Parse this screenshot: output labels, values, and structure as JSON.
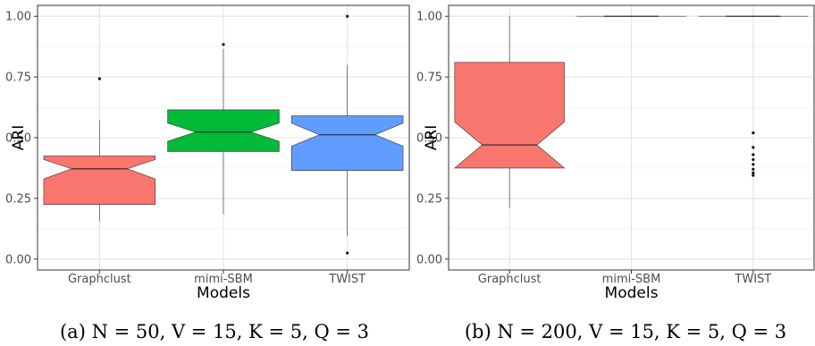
{
  "chart_data": [
    {
      "type": "box",
      "caption": "(a) N = 50, V = 15, K = 5, Q = 3",
      "xlabel": "Models",
      "ylabel": "ARI",
      "ylim": [
        -0.045,
        1.045
      ],
      "yticks": [
        "0.00",
        "0.25",
        "0.50",
        "0.75",
        "1.00"
      ],
      "categories": [
        "Graphclust",
        "mimi-SBM",
        "TWIST"
      ],
      "grid": true,
      "notched": true,
      "boxes": [
        {
          "category": "Graphclust",
          "color": "#F8766D",
          "lower_whisker": 0.155,
          "q1": 0.225,
          "median": 0.372,
          "q3": 0.425,
          "upper_whisker": 0.572,
          "notch_low": 0.33,
          "notch_high": 0.41,
          "outliers": [
            0.743
          ]
        },
        {
          "category": "mimi-SBM",
          "color": "#00BA38",
          "lower_whisker": 0.185,
          "q1": 0.443,
          "median": 0.523,
          "q3": 0.615,
          "upper_whisker": 0.865,
          "notch_low": 0.485,
          "notch_high": 0.56,
          "outliers": [
            0.884
          ]
        },
        {
          "category": "TWIST",
          "color": "#619CFF",
          "lower_whisker": 0.095,
          "q1": 0.365,
          "median": 0.512,
          "q3": 0.59,
          "upper_whisker": 0.8,
          "notch_low": 0.465,
          "notch_high": 0.56,
          "outliers": [
            1.0,
            0.025
          ]
        }
      ]
    },
    {
      "type": "box",
      "caption": "(b) N = 200, V = 15, K = 5, Q = 3",
      "xlabel": "Models",
      "ylabel": "ARI",
      "ylim": [
        -0.045,
        1.045
      ],
      "yticks": [
        "0.00",
        "0.25",
        "0.50",
        "0.75",
        "1.00"
      ],
      "categories": [
        "Graphclust",
        "mimi-SBM",
        "TWIST"
      ],
      "grid": true,
      "notched": true,
      "boxes": [
        {
          "category": "Graphclust",
          "color": "#F8766D",
          "lower_whisker": 0.21,
          "q1": 0.375,
          "median": 0.47,
          "q3": 0.81,
          "upper_whisker": 1.0,
          "notch_low": 0.375,
          "notch_high": 0.565,
          "outliers": []
        },
        {
          "category": "mimi-SBM",
          "color": "#00BA38",
          "lower_whisker": 1.0,
          "q1": 1.0,
          "median": 1.0,
          "q3": 1.0,
          "upper_whisker": 1.0,
          "notch_low": 1.0,
          "notch_high": 1.0,
          "outliers": []
        },
        {
          "category": "TWIST",
          "color": "#619CFF",
          "lower_whisker": 1.0,
          "q1": 1.0,
          "median": 1.0,
          "q3": 1.0,
          "upper_whisker": 1.0,
          "notch_low": 1.0,
          "notch_high": 1.0,
          "outliers": [
            0.52,
            0.46,
            0.43,
            0.41,
            0.39,
            0.37,
            0.355,
            0.345
          ]
        }
      ]
    }
  ]
}
